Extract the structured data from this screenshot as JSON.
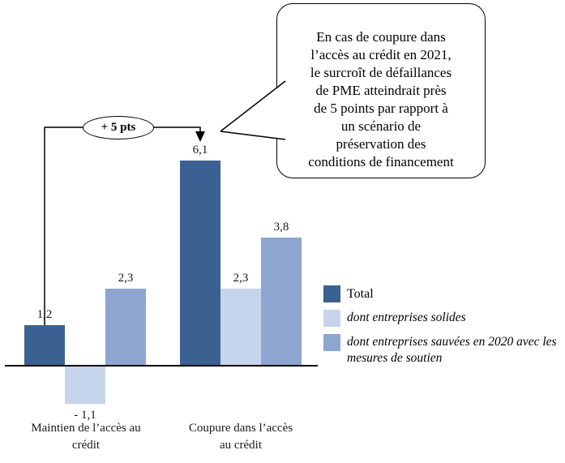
{
  "chart_data": {
    "type": "bar",
    "title": "",
    "categories": [
      "Maintien de l’accès au crédit",
      "Coupure dans l’accès au crédit"
    ],
    "series": [
      {
        "name": "Total",
        "color": "#3a6191",
        "values": [
          1.2,
          6.1
        ],
        "value_labels": [
          "1,2",
          "6,1"
        ]
      },
      {
        "name": "dont entreprises solides",
        "color": "#c6d5eb",
        "values": [
          -1.1,
          2.3
        ],
        "value_labels": [
          "- 1,1",
          "2,3"
        ]
      },
      {
        "name": "dont entreprises sauvées en 2020 avec les mesures de soutien",
        "color": "#8ca6d0",
        "values": [
          2.3,
          3.8
        ],
        "value_labels": [
          "2,3",
          "3,8"
        ]
      }
    ],
    "ylim": [
      -2,
      7
    ],
    "grid": false,
    "legend_position": "right",
    "arrow_label": "+ 5 pts",
    "annotation": "En cas de coupure dans\nl’accès au crédit en 2021,\nle surcroît de défaillances\nde PME atteindrait près\nde 5 points par rapport à\nun scénario de\npréservation des\nconditions de financement"
  }
}
